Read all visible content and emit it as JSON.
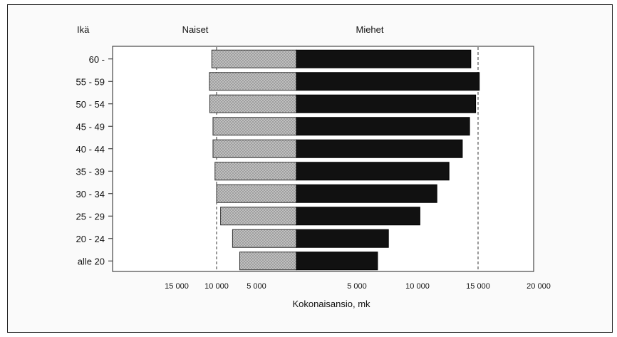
{
  "chart_data": {
    "type": "bar",
    "orientation": "horizontal",
    "layout": "population-pyramid",
    "corner_label": "Ikä",
    "xlabel": "Kokonaisansio, mk",
    "categories": [
      "60 -",
      "55 - 59",
      "50 - 54",
      "45 - 49",
      "40 - 44",
      "35 - 39",
      "30 - 34",
      "25 - 29",
      "20 - 24",
      "alle 20"
    ],
    "series": [
      {
        "name": "Naiset",
        "side": "left",
        "color": "#b8b8b8",
        "pattern": "crosshatch",
        "values": [
          10600,
          10900,
          10850,
          10450,
          10450,
          10200,
          10000,
          9500,
          8000,
          7100
        ]
      },
      {
        "name": "Miehet",
        "side": "right",
        "color": "#111111",
        "values": [
          14400,
          15100,
          14800,
          14300,
          13700,
          12600,
          11600,
          10200,
          7600,
          6700
        ]
      }
    ],
    "left_ticks": [
      {
        "value": 15000,
        "label": "15 000"
      },
      {
        "value": 10000,
        "label": "10 000"
      },
      {
        "value": 5000,
        "label": "5 000"
      }
    ],
    "right_ticks": [
      {
        "value": 5000,
        "label": "5 000"
      },
      {
        "value": 10000,
        "label": "10 000"
      },
      {
        "value": 15000,
        "label": "15 000"
      },
      {
        "value": 20000,
        "label": "20 000"
      }
    ],
    "reference_lines": [
      {
        "side": "left",
        "value": 10000
      },
      {
        "side": "right",
        "value": 15000
      }
    ],
    "xlim_left": [
      0,
      15000
    ],
    "xlim_right": [
      0,
      20000
    ],
    "legend": "none; series names shown as headers above each side",
    "grid": false
  }
}
